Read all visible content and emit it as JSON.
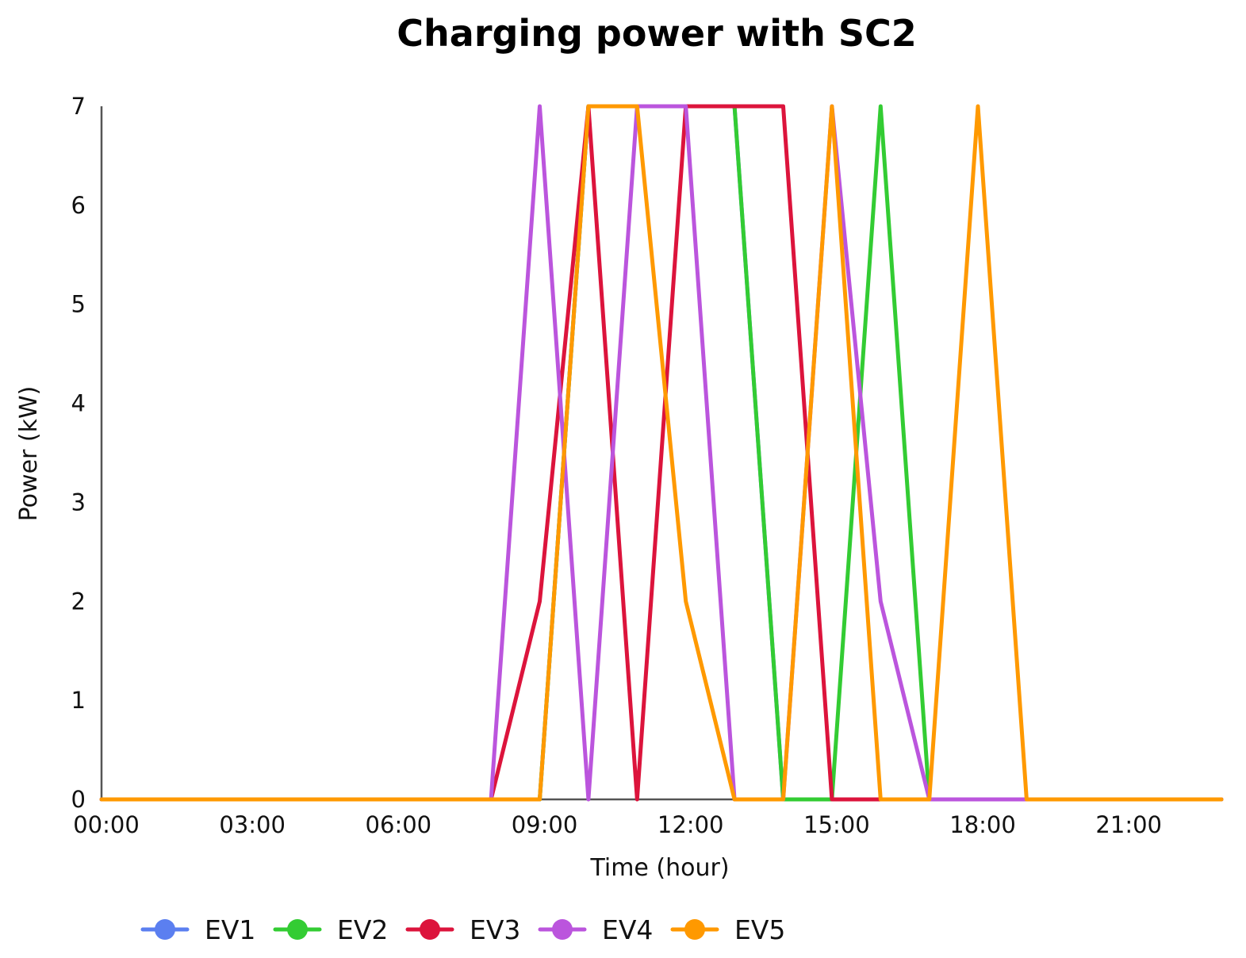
{
  "chart_data": {
    "type": "line",
    "title": "Charging power with SC2",
    "xlabel": "Time (hour)",
    "ylabel": "Power (kW)",
    "x_unit": "hour",
    "x": [
      0,
      1,
      2,
      3,
      4,
      5,
      6,
      7,
      8,
      9,
      10,
      11,
      12,
      13,
      14,
      15,
      16,
      17,
      18,
      19,
      20,
      21,
      22,
      23
    ],
    "x_range": [
      0,
      23
    ],
    "x_ticks": [
      {
        "value": 0,
        "label": "00:00"
      },
      {
        "value": 3,
        "label": "03:00"
      },
      {
        "value": 6,
        "label": "06:00"
      },
      {
        "value": 9,
        "label": "09:00"
      },
      {
        "value": 12,
        "label": "12:00"
      },
      {
        "value": 15,
        "label": "15:00"
      },
      {
        "value": 18,
        "label": "18:00"
      },
      {
        "value": 21,
        "label": "21:00"
      }
    ],
    "ylim": [
      0,
      7
    ],
    "y_ticks": [
      {
        "value": 0,
        "label": "0"
      },
      {
        "value": 1,
        "label": "1"
      },
      {
        "value": 2,
        "label": "2"
      },
      {
        "value": 3,
        "label": "3"
      },
      {
        "value": 4,
        "label": "4"
      },
      {
        "value": 5,
        "label": "5"
      },
      {
        "value": 6,
        "label": "6"
      },
      {
        "value": 7,
        "label": "7"
      }
    ],
    "grid": false,
    "legend_position": "bottom-left",
    "series": [
      {
        "name": "EV1",
        "color": "#5b7ff0",
        "values": [
          0,
          0,
          0,
          0,
          0,
          0,
          0,
          0,
          0,
          0,
          7,
          7,
          7,
          7,
          0,
          0,
          0,
          0,
          0,
          0,
          0,
          0,
          0,
          0
        ]
      },
      {
        "name": "EV2",
        "color": "#33cc33",
        "values": [
          0,
          0,
          0,
          0,
          0,
          0,
          0,
          0,
          0,
          0,
          7,
          7,
          7,
          7,
          0,
          0,
          7,
          0,
          0,
          0,
          0,
          0,
          0,
          0
        ]
      },
      {
        "name": "EV3",
        "color": "#dc143c",
        "values": [
          0,
          0,
          0,
          0,
          0,
          0,
          0,
          0,
          0,
          2,
          7,
          0,
          7,
          7,
          7,
          0,
          0,
          0,
          0,
          0,
          0,
          0,
          0,
          0
        ]
      },
      {
        "name": "EV4",
        "color": "#bb55dd",
        "values": [
          0,
          0,
          0,
          0,
          0,
          0,
          0,
          0,
          0,
          7,
          0,
          7,
          7,
          0,
          0,
          7,
          2,
          0,
          0,
          0,
          0,
          0,
          0,
          0
        ]
      },
      {
        "name": "EV5",
        "color": "#ff9900",
        "values": [
          0,
          0,
          0,
          0,
          0,
          0,
          0,
          0,
          0,
          0,
          7,
          7,
          2,
          0,
          0,
          7,
          0,
          0,
          7,
          0,
          0,
          0,
          0,
          0
        ]
      }
    ]
  }
}
